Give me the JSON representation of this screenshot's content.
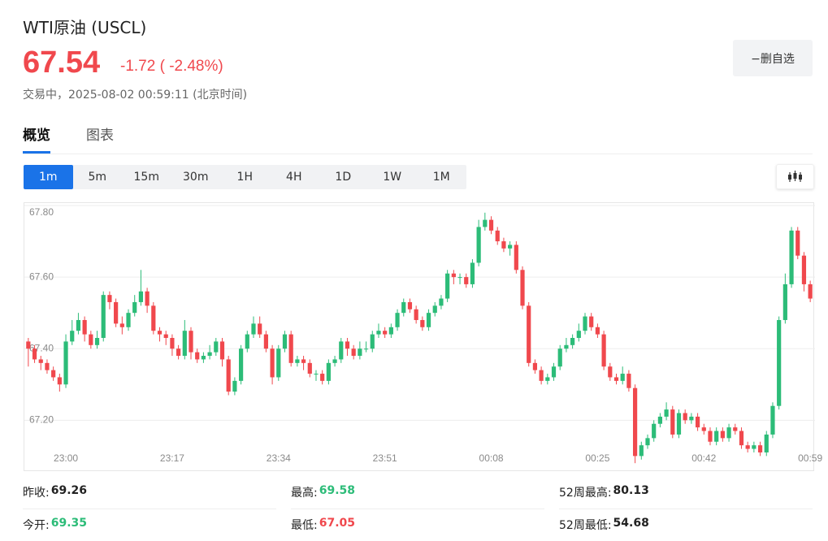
{
  "header": {
    "title": "WTI原油 (USCL)",
    "price": "67.54",
    "change": "-1.72 ( -2.48%)",
    "status": "交易中，2025-08-02 00:59:11 (北京时间)",
    "watch_button": "−删自选",
    "price_color": "#f0484d"
  },
  "tabs": [
    "概览",
    "图表"
  ],
  "intervals": [
    "1m",
    "5m",
    "15m",
    "30m",
    "1H",
    "4H",
    "1D",
    "1W",
    "1M"
  ],
  "chart_data": {
    "type": "candlestick",
    "up_color": "#2cbc78",
    "down_color": "#f0484d",
    "grid": true,
    "ylim": [
      67.06,
      67.8
    ],
    "yticks": [
      {
        "value": 67.2,
        "label": "67.20"
      },
      {
        "value": 67.4,
        "label": "67.40"
      },
      {
        "value": 67.6,
        "label": "67.60"
      },
      {
        "value": 67.8,
        "label": "67.80"
      }
    ],
    "xticks": [
      "23:00",
      "23:17",
      "23:34",
      "23:51",
      "00:08",
      "00:25",
      "00:42",
      "00:59"
    ],
    "x": [
      "22:54",
      "22:55",
      "22:56",
      "22:57",
      "22:58",
      "22:59",
      "23:00",
      "23:01",
      "23:02",
      "23:03",
      "23:04",
      "23:05",
      "23:06",
      "23:07",
      "23:08",
      "23:09",
      "23:10",
      "23:11",
      "23:12",
      "23:13",
      "23:14",
      "23:15",
      "23:16",
      "23:17",
      "23:18",
      "23:19",
      "23:20",
      "23:21",
      "23:22",
      "23:23",
      "23:24",
      "23:25",
      "23:26",
      "23:27",
      "23:28",
      "23:29",
      "23:30",
      "23:31",
      "23:32",
      "23:33",
      "23:34",
      "23:35",
      "23:36",
      "23:37",
      "23:38",
      "23:39",
      "23:40",
      "23:41",
      "23:42",
      "23:43",
      "23:44",
      "23:45",
      "23:46",
      "23:47",
      "23:48",
      "23:49",
      "23:50",
      "23:51",
      "23:52",
      "23:53",
      "23:54",
      "23:55",
      "23:56",
      "23:57",
      "23:58",
      "23:59",
      "00:00",
      "00:01",
      "00:02",
      "00:03",
      "00:04",
      "00:05",
      "00:06",
      "00:07",
      "00:08",
      "00:09",
      "00:10",
      "00:11",
      "00:12",
      "00:13",
      "00:14",
      "00:15",
      "00:16",
      "00:17",
      "00:18",
      "00:19",
      "00:20",
      "00:21",
      "00:22",
      "00:23",
      "00:24",
      "00:25",
      "00:26",
      "00:27",
      "00:28",
      "00:29",
      "00:30",
      "00:31",
      "00:32",
      "00:33",
      "00:34",
      "00:35",
      "00:36",
      "00:37",
      "00:38",
      "00:39",
      "00:40",
      "00:41",
      "00:42",
      "00:43",
      "00:44",
      "00:45",
      "00:46",
      "00:47",
      "00:48",
      "00:49",
      "00:50",
      "00:51",
      "00:52",
      "00:53",
      "00:54",
      "00:55",
      "00:56",
      "00:57",
      "00:58",
      "00:59"
    ],
    "open": [
      67.42,
      67.4,
      67.37,
      67.36,
      67.34,
      67.32,
      67.3,
      67.42,
      67.45,
      67.48,
      67.44,
      67.41,
      67.43,
      67.55,
      67.53,
      67.47,
      67.46,
      67.5,
      67.53,
      67.56,
      67.52,
      67.45,
      67.44,
      67.43,
      67.4,
      67.38,
      67.45,
      67.39,
      67.37,
      67.38,
      67.39,
      67.42,
      67.37,
      67.28,
      67.31,
      67.4,
      67.44,
      67.47,
      67.44,
      67.4,
      67.32,
      67.4,
      67.44,
      67.36,
      67.37,
      67.36,
      67.33,
      67.33,
      67.31,
      67.36,
      67.37,
      67.42,
      67.4,
      67.38,
      67.4,
      67.4,
      67.44,
      67.45,
      67.44,
      67.46,
      67.5,
      67.53,
      67.51,
      67.48,
      67.46,
      67.5,
      67.52,
      67.54,
      67.61,
      67.6,
      67.6,
      67.58,
      67.64,
      67.74,
      67.76,
      67.73,
      67.7,
      67.68,
      67.69,
      67.62,
      67.52,
      67.36,
      67.34,
      67.31,
      67.32,
      67.35,
      67.4,
      67.41,
      67.43,
      67.45,
      67.49,
      67.46,
      67.44,
      67.35,
      67.32,
      67.31,
      67.33,
      67.29,
      67.1,
      67.13,
      67.15,
      67.19,
      67.21,
      67.23,
      67.16,
      67.22,
      67.2,
      67.21,
      67.18,
      67.17,
      67.14,
      67.17,
      67.15,
      67.18,
      67.17,
      67.13,
      67.12,
      67.13,
      67.11,
      67.16,
      67.24,
      67.48,
      67.58,
      67.73,
      67.66,
      67.58
    ],
    "high": [
      67.43,
      67.41,
      67.38,
      67.37,
      67.35,
      67.33,
      67.44,
      67.48,
      67.5,
      67.49,
      67.45,
      67.45,
      67.56,
      67.56,
      67.54,
      67.49,
      67.51,
      67.55,
      67.62,
      67.57,
      67.53,
      67.46,
      67.45,
      67.44,
      67.41,
      67.48,
      67.46,
      67.4,
      67.39,
      67.41,
      67.43,
      67.43,
      67.38,
      67.32,
      67.41,
      67.45,
      67.49,
      67.49,
      67.45,
      67.41,
      67.41,
      67.45,
      67.45,
      67.38,
      67.38,
      67.37,
      67.34,
      67.34,
      67.37,
      67.38,
      67.43,
      67.43,
      67.41,
      67.42,
      67.42,
      67.45,
      67.47,
      67.46,
      67.47,
      67.51,
      67.54,
      67.54,
      67.52,
      67.49,
      67.51,
      67.53,
      67.55,
      67.62,
      67.62,
      67.61,
      67.61,
      67.65,
      67.76,
      67.78,
      67.77,
      67.74,
      67.71,
      67.7,
      67.7,
      67.63,
      67.53,
      67.37,
      67.35,
      67.33,
      67.36,
      67.41,
      67.43,
      67.44,
      67.47,
      67.5,
      67.5,
      67.47,
      67.45,
      67.36,
      67.33,
      67.35,
      67.34,
      67.3,
      67.14,
      67.16,
      67.2,
      67.22,
      67.25,
      67.24,
      67.23,
      67.23,
      67.22,
      67.22,
      67.19,
      67.18,
      67.18,
      67.18,
      67.19,
      67.19,
      67.18,
      67.14,
      67.14,
      67.14,
      67.17,
      67.25,
      67.49,
      67.61,
      67.74,
      67.74,
      67.67,
      67.59
    ],
    "low": [
      67.35,
      67.36,
      67.34,
      67.33,
      67.31,
      67.28,
      67.29,
      67.41,
      67.44,
      67.42,
      67.4,
      67.4,
      67.42,
      67.51,
      67.46,
      67.44,
      67.45,
      67.49,
      67.52,
      67.5,
      67.44,
      67.42,
      67.41,
      67.38,
      67.37,
      67.37,
      67.37,
      67.36,
      67.36,
      67.37,
      67.38,
      67.35,
      67.27,
      67.27,
      67.3,
      67.39,
      67.43,
      67.43,
      67.39,
      67.3,
      67.31,
      67.39,
      67.35,
      67.35,
      67.34,
      67.32,
      67.31,
      67.3,
      67.3,
      67.35,
      67.36,
      67.38,
      67.37,
      67.37,
      67.39,
      67.39,
      67.43,
      67.43,
      67.43,
      67.45,
      67.49,
      67.5,
      67.47,
      67.45,
      67.45,
      67.49,
      67.51,
      67.53,
      67.58,
      67.58,
      67.57,
      67.57,
      67.63,
      67.73,
      67.72,
      67.69,
      67.67,
      67.66,
      67.61,
      67.51,
      67.35,
      67.33,
      67.3,
      67.3,
      67.31,
      67.34,
      67.39,
      67.4,
      67.42,
      67.44,
      67.45,
      67.43,
      67.34,
      67.31,
      67.3,
      67.3,
      67.28,
      67.08,
      67.09,
      67.12,
      67.14,
      67.18,
      67.2,
      67.15,
      67.15,
      67.19,
      67.19,
      67.17,
      67.16,
      67.13,
      67.13,
      67.14,
      67.14,
      67.16,
      67.12,
      67.11,
      67.11,
      67.1,
      67.1,
      67.15,
      67.23,
      67.47,
      67.57,
      67.65,
      67.56,
      67.53
    ],
    "close": [
      67.4,
      67.37,
      67.36,
      67.34,
      67.32,
      67.3,
      67.42,
      67.45,
      67.48,
      67.44,
      67.41,
      67.43,
      67.55,
      67.53,
      67.47,
      67.46,
      67.5,
      67.53,
      67.56,
      67.52,
      67.45,
      67.44,
      67.43,
      67.4,
      67.38,
      67.45,
      67.39,
      67.37,
      67.38,
      67.39,
      67.42,
      67.37,
      67.28,
      67.31,
      67.4,
      67.44,
      67.47,
      67.44,
      67.4,
      67.32,
      67.4,
      67.44,
      67.36,
      67.37,
      67.36,
      67.33,
      67.33,
      67.31,
      67.36,
      67.37,
      67.42,
      67.4,
      67.38,
      67.4,
      67.4,
      67.44,
      67.45,
      67.44,
      67.46,
      67.5,
      67.53,
      67.51,
      67.48,
      67.46,
      67.5,
      67.52,
      67.54,
      67.61,
      67.6,
      67.6,
      67.58,
      67.64,
      67.74,
      67.76,
      67.73,
      67.7,
      67.68,
      67.69,
      67.62,
      67.52,
      67.36,
      67.34,
      67.31,
      67.32,
      67.35,
      67.4,
      67.41,
      67.43,
      67.45,
      67.49,
      67.46,
      67.44,
      67.35,
      67.32,
      67.31,
      67.33,
      67.29,
      67.1,
      67.13,
      67.15,
      67.19,
      67.21,
      67.23,
      67.16,
      67.22,
      67.2,
      67.21,
      67.18,
      67.17,
      67.14,
      67.17,
      67.15,
      67.18,
      67.17,
      67.13,
      67.12,
      67.13,
      67.11,
      67.16,
      67.24,
      67.48,
      67.58,
      67.73,
      67.66,
      67.58,
      67.54
    ]
  },
  "stats": [
    {
      "label": "昨收:",
      "value": "69.26",
      "color": "#222222"
    },
    {
      "label": "最高:",
      "value": "69.58",
      "color": "#2cbc78"
    },
    {
      "label": "52周最高:",
      "value": "80.13",
      "color": "#222222"
    },
    {
      "label": "今开:",
      "value": "69.35",
      "color": "#2cbc78"
    },
    {
      "label": "最低:",
      "value": "67.05",
      "color": "#f0484d"
    },
    {
      "label": "52周最低:",
      "value": "54.68",
      "color": "#222222"
    }
  ]
}
